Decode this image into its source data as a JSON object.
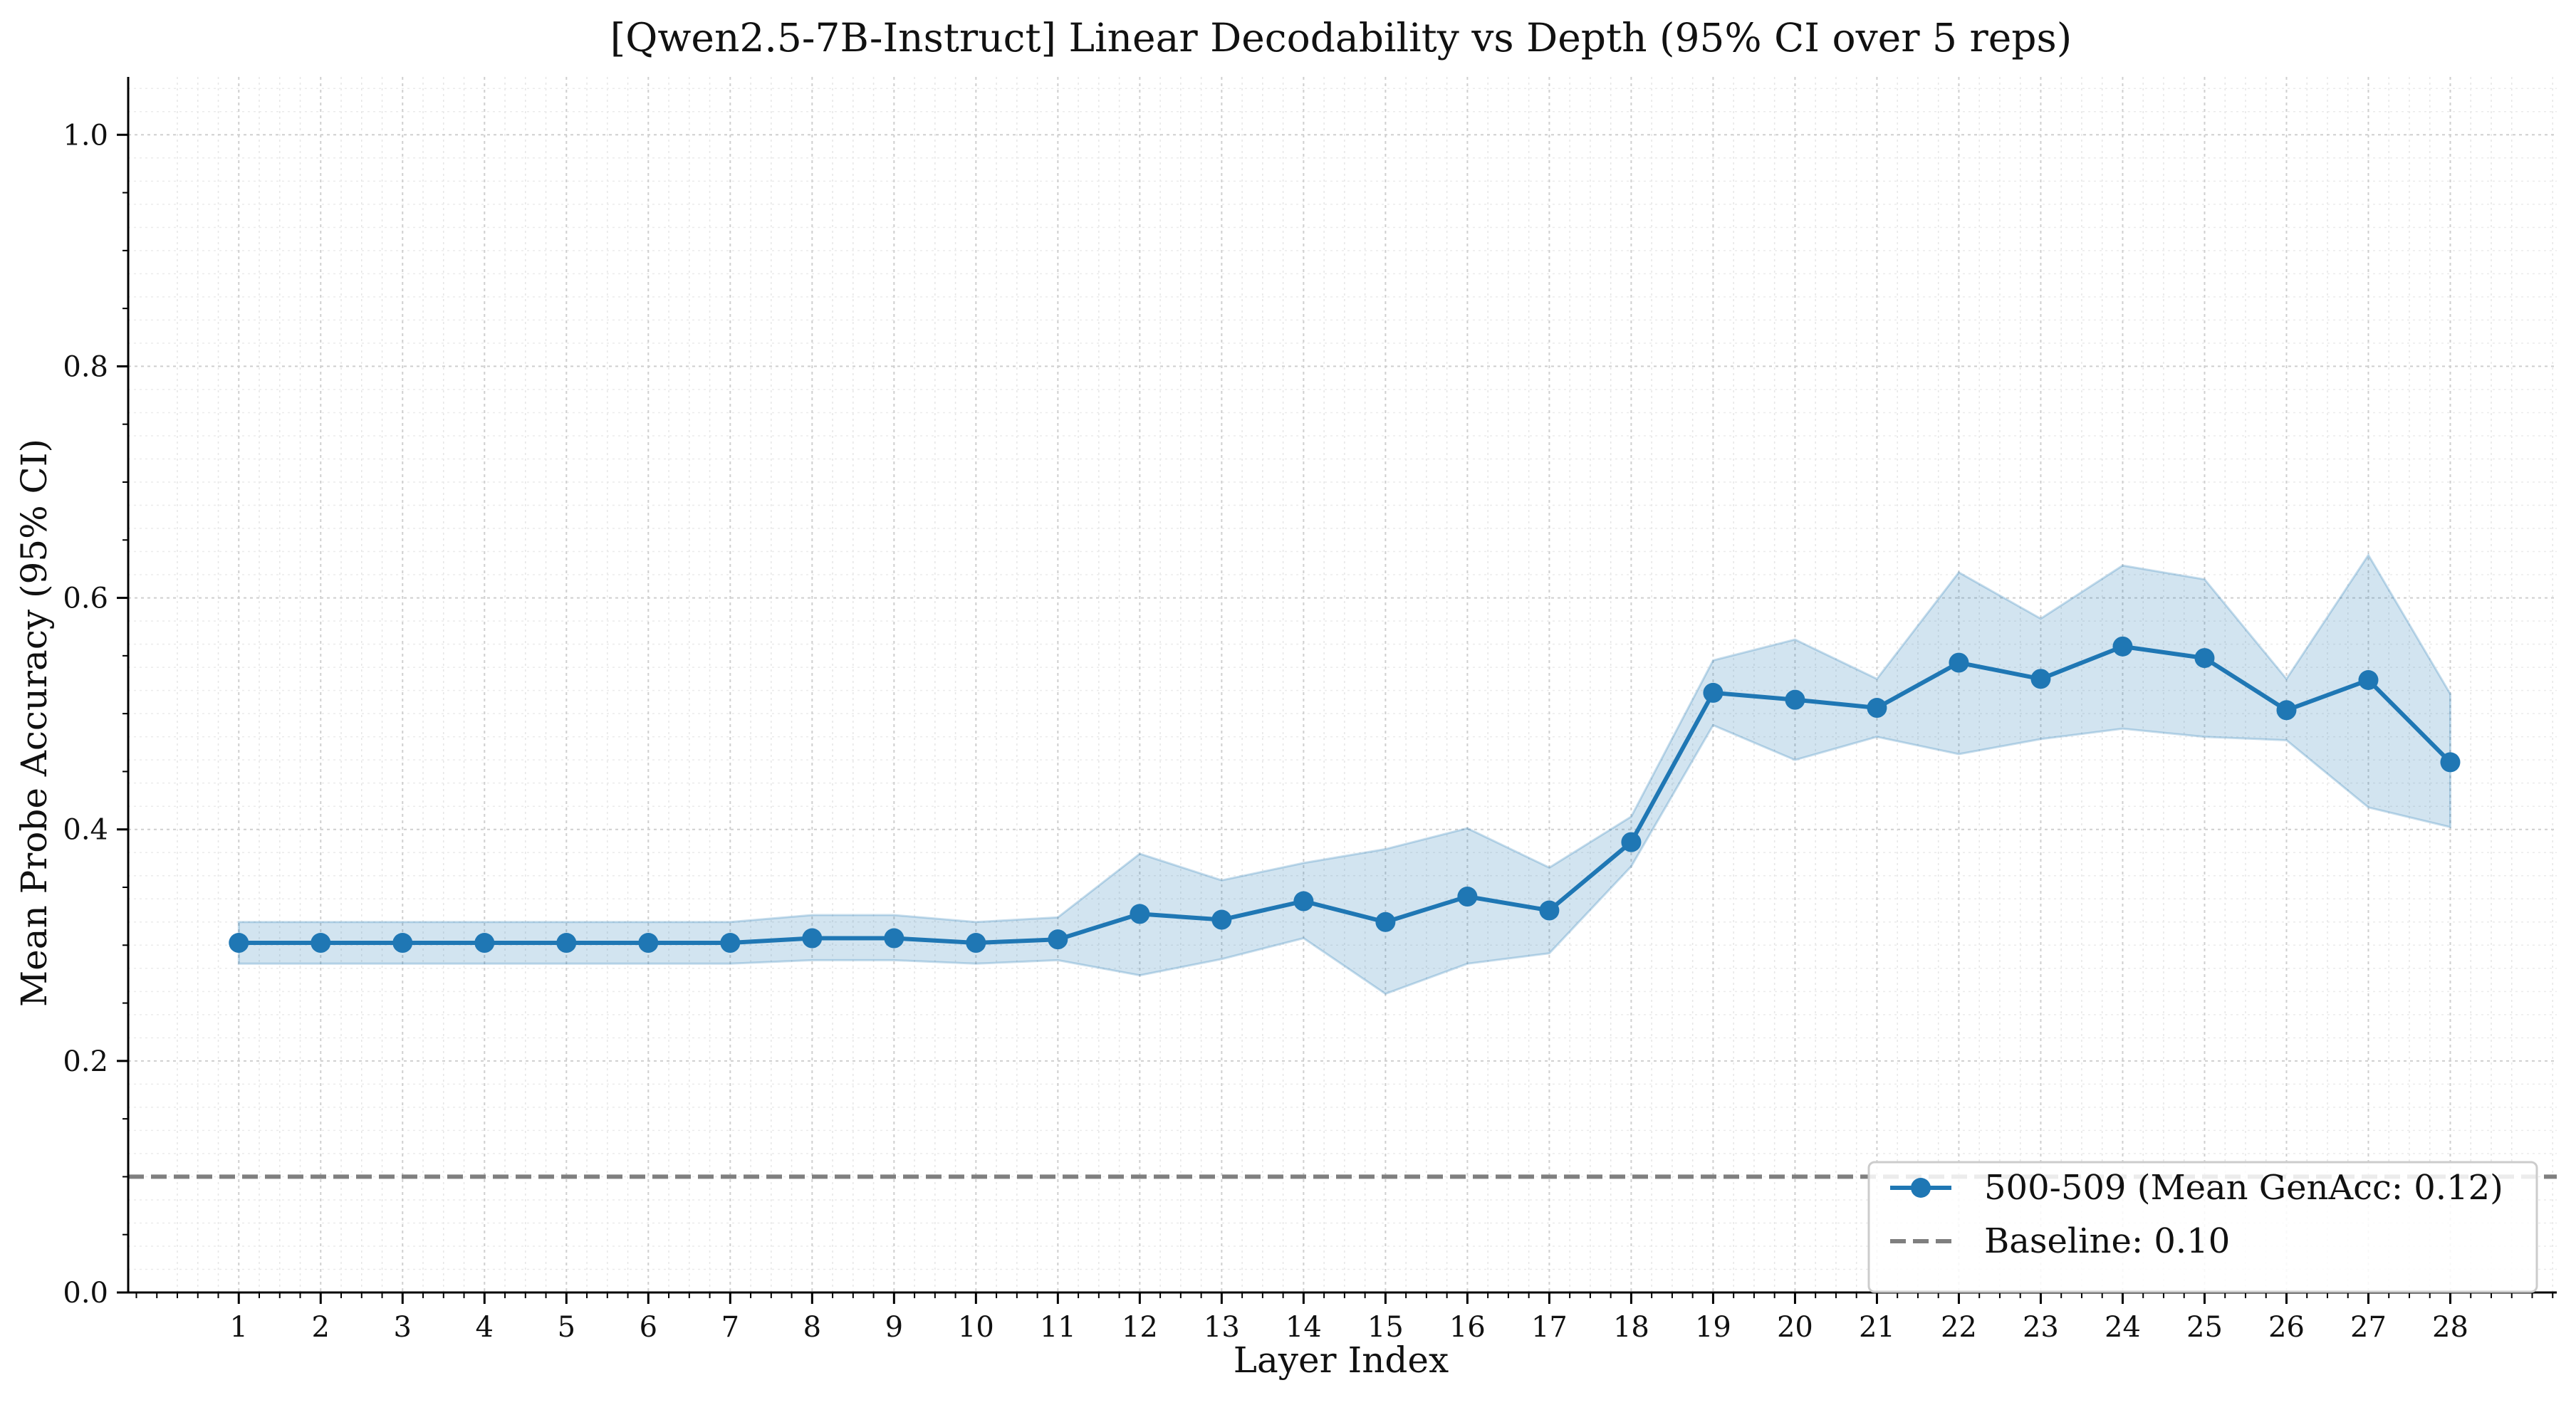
{
  "chart_data": {
    "type": "line",
    "title": "[Qwen2.5-7B-Instruct] Linear Decodability vs Depth (95% CI over 5 reps)",
    "xlabel": "Layer Index",
    "ylabel": "Mean Probe Accuracy (95% CI)",
    "xlim": [
      -0.35,
      29.3
    ],
    "ylim": [
      0.0,
      1.05
    ],
    "grid": true,
    "legend_position": "lower-right",
    "x": [
      1,
      2,
      3,
      4,
      5,
      6,
      7,
      8,
      9,
      10,
      11,
      12,
      13,
      14,
      15,
      16,
      17,
      18,
      19,
      20,
      21,
      22,
      23,
      24,
      25,
      26,
      27,
      28
    ],
    "x_tick_labels": [
      "1",
      "2",
      "3",
      "4",
      "5",
      "6",
      "7",
      "8",
      "9",
      "10",
      "11",
      "12",
      "13",
      "14",
      "15",
      "16",
      "17",
      "18",
      "19",
      "20",
      "21",
      "22",
      "23",
      "24",
      "25",
      "26",
      "27",
      "28"
    ],
    "y_ticks": [
      0.0,
      0.2,
      0.4,
      0.6,
      0.8,
      1.0
    ],
    "y_tick_labels": [
      "0.0",
      "0.2",
      "0.4",
      "0.6",
      "0.8",
      "1.0"
    ],
    "series": [
      {
        "name": "500-509 (Mean GenAcc: 0.12)",
        "color": "#1f77b4",
        "marker": "circle",
        "values": [
          0.302,
          0.302,
          0.302,
          0.302,
          0.302,
          0.302,
          0.302,
          0.306,
          0.306,
          0.302,
          0.305,
          0.327,
          0.322,
          0.338,
          0.32,
          0.342,
          0.33,
          0.389,
          0.518,
          0.512,
          0.505,
          0.544,
          0.53,
          0.558,
          0.548,
          0.503,
          0.529,
          0.458
        ],
        "ci_lower": [
          0.284,
          0.284,
          0.284,
          0.284,
          0.284,
          0.284,
          0.284,
          0.287,
          0.287,
          0.284,
          0.287,
          0.274,
          0.288,
          0.306,
          0.258,
          0.284,
          0.293,
          0.368,
          0.49,
          0.46,
          0.48,
          0.465,
          0.478,
          0.487,
          0.48,
          0.477,
          0.419,
          0.402
        ],
        "ci_upper": [
          0.32,
          0.32,
          0.32,
          0.32,
          0.32,
          0.32,
          0.32,
          0.326,
          0.326,
          0.32,
          0.324,
          0.379,
          0.356,
          0.371,
          0.383,
          0.401,
          0.367,
          0.411,
          0.546,
          0.564,
          0.53,
          0.622,
          0.582,
          0.628,
          0.616,
          0.53,
          0.637,
          0.517
        ]
      }
    ],
    "baseline": {
      "name": "Baseline: 0.10",
      "value": 0.1,
      "color": "#7f7f7f",
      "style": "dashed"
    }
  }
}
